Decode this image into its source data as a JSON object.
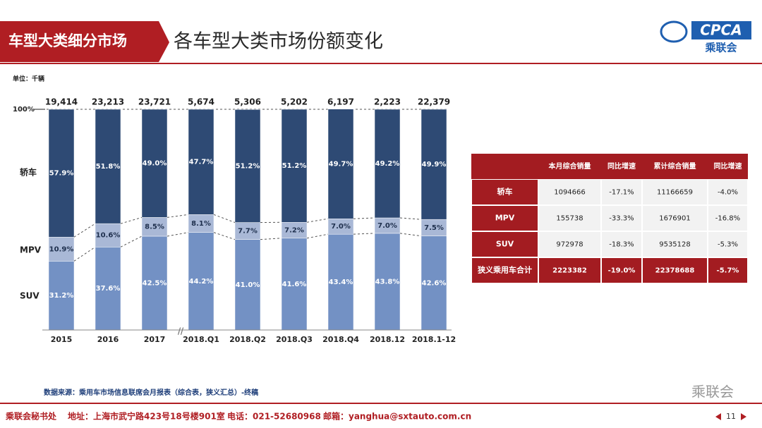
{
  "header": {
    "section": "车型大类细分市场",
    "title": "各车型大类市场份额变化",
    "logo_mark": "CPCA",
    "logo_name": "乘联会"
  },
  "chart_data": {
    "type": "stacked_bar",
    "unit_label": "单位：千辆",
    "categories": [
      "2015",
      "2016",
      "2017",
      "2018.Q1",
      "2018.Q2",
      "2018.Q3",
      "2018.Q4",
      "2018.12",
      "2018.1-12"
    ],
    "series": [
      {
        "name": "SUV",
        "color": "#7391c4",
        "values": [
          31.2,
          37.6,
          42.5,
          44.2,
          41.0,
          41.6,
          43.4,
          43.8,
          42.6
        ],
        "value_labels": [
          "31.2%",
          "37.6%",
          "42.5%",
          "44.2%",
          "41.0%",
          "41.6%",
          "43.4%",
          "43.8%",
          "42.6%"
        ]
      },
      {
        "name": "MPV",
        "color": "#a9b8d6",
        "values": [
          10.9,
          10.6,
          8.5,
          8.1,
          7.7,
          7.2,
          7.0,
          7.0,
          7.5
        ],
        "value_labels": [
          "10.9%",
          "10.6%",
          "8.5%",
          "8.1%",
          "7.7%",
          "7.2%",
          "7.0%",
          "7.0%",
          "7.5%"
        ]
      },
      {
        "name": "轿车",
        "color": "#2e4a74",
        "values": [
          57.9,
          51.8,
          49.0,
          47.7,
          51.2,
          51.2,
          49.7,
          49.2,
          49.9
        ],
        "value_labels": [
          "57.9%",
          "51.8%",
          "49.0%",
          "47.7%",
          "51.2%",
          "51.2%",
          "49.7%",
          "49.2%",
          "49.9%"
        ]
      }
    ],
    "totals": {
      "values": [
        19414,
        23213,
        23721,
        5674,
        5306,
        5202,
        6197,
        2223,
        22379
      ],
      "value_labels": [
        "19,414",
        "23,213",
        "23,721",
        "5,674",
        "5,306",
        "5,202",
        "6,197",
        "2,223",
        "22,379"
      ]
    },
    "ylim": [
      0,
      100
    ],
    "yticks": [
      {
        "value": 100,
        "label": "100%"
      }
    ],
    "source": "数据来源：乘用车市场信息联席会月报表（综合表，狭义汇总）-终稿"
  },
  "table": {
    "columns": [
      "本月综合销量",
      "同比增速",
      "累计综合销量",
      "同比增速"
    ],
    "rows": [
      [
        "轿车",
        "1094666",
        "-17.1%",
        "11166659",
        "-4.0%"
      ],
      [
        "MPV",
        "155738",
        "-33.3%",
        "1676901",
        "-16.8%"
      ],
      [
        "SUV",
        "972978",
        "-18.3%",
        "9535128",
        "-5.3%"
      ],
      [
        "狭义乘用车合计",
        "2223382",
        "-19.0%",
        "22378688",
        "-5.7%"
      ]
    ]
  },
  "watermark": "乘联会",
  "footer": {
    "org": "乘联会秘书处",
    "address": "地址：上海市武宁路423号18号楼901室",
    "phone": "电话：021-52680968",
    "email": "邮箱：yanghua@sxtauto.com.cn",
    "page": "11"
  }
}
